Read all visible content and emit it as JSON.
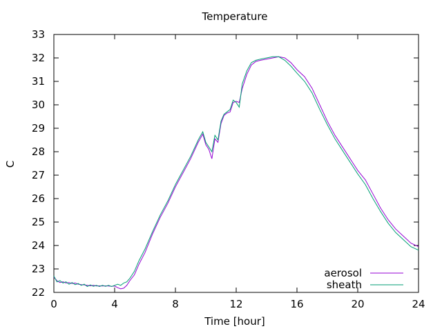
{
  "chart_data": {
    "type": "line",
    "title": "Temperature",
    "xlabel": "Time [hour]",
    "ylabel": "C",
    "xlim": [
      0,
      24
    ],
    "ylim": [
      22,
      33
    ],
    "xticks": [
      "0",
      "4",
      "8",
      "12",
      "16",
      "20",
      "24"
    ],
    "yticks": [
      "22",
      "23",
      "24",
      "25",
      "26",
      "27",
      "28",
      "29",
      "30",
      "31",
      "32",
      "33"
    ],
    "grid": false,
    "legend_position": "bottom-right",
    "series": [
      {
        "name": "aerosol",
        "color": "#9400d3",
        "x": [
          0.0,
          0.2,
          0.4,
          0.6,
          0.8,
          1.0,
          1.2,
          1.4,
          1.6,
          1.8,
          2.0,
          2.2,
          2.4,
          2.6,
          2.8,
          3.0,
          3.2,
          3.4,
          3.6,
          3.8,
          4.0,
          4.2,
          4.4,
          4.6,
          4.8,
          5.0,
          5.3,
          5.6,
          6.0,
          6.5,
          7.0,
          7.5,
          8.0,
          8.5,
          9.0,
          9.5,
          9.8,
          10.0,
          10.2,
          10.4,
          10.6,
          10.8,
          11.0,
          11.2,
          11.4,
          11.6,
          11.8,
          12.0,
          12.2,
          12.4,
          12.7,
          13.0,
          13.3,
          13.6,
          14.0,
          14.4,
          14.8,
          15.2,
          15.6,
          16.0,
          16.5,
          17.0,
          17.5,
          18.0,
          18.5,
          19.0,
          19.5,
          20.0,
          20.5,
          21.0,
          21.5,
          22.0,
          22.5,
          23.0,
          23.5,
          24.0
        ],
        "y": [
          22.65,
          22.5,
          22.42,
          22.45,
          22.4,
          22.42,
          22.38,
          22.4,
          22.35,
          22.33,
          22.32,
          22.3,
          22.28,
          22.3,
          22.27,
          22.28,
          22.27,
          22.28,
          22.27,
          22.26,
          22.27,
          22.2,
          22.15,
          22.18,
          22.3,
          22.5,
          22.75,
          23.2,
          23.7,
          24.5,
          25.2,
          25.8,
          26.5,
          27.1,
          27.7,
          28.4,
          28.75,
          28.3,
          28.1,
          27.7,
          28.55,
          28.4,
          29.2,
          29.55,
          29.65,
          29.7,
          30.1,
          30.15,
          30.1,
          30.7,
          31.3,
          31.7,
          31.85,
          31.9,
          31.95,
          32.0,
          32.05,
          32.0,
          31.8,
          31.5,
          31.2,
          30.7,
          30.0,
          29.3,
          28.7,
          28.2,
          27.7,
          27.2,
          26.8,
          26.2,
          25.6,
          25.1,
          24.7,
          24.4,
          24.1,
          23.95
        ]
      },
      {
        "name": "sheath",
        "color": "#009e73",
        "x": [
          0.0,
          0.2,
          0.4,
          0.6,
          0.8,
          1.0,
          1.2,
          1.4,
          1.6,
          1.8,
          2.0,
          2.2,
          2.4,
          2.6,
          2.8,
          3.0,
          3.2,
          3.4,
          3.6,
          3.8,
          4.0,
          4.2,
          4.4,
          4.6,
          4.8,
          5.0,
          5.3,
          5.6,
          6.0,
          6.5,
          7.0,
          7.5,
          8.0,
          8.5,
          9.0,
          9.5,
          9.8,
          10.0,
          10.2,
          10.4,
          10.6,
          10.8,
          11.0,
          11.2,
          11.4,
          11.6,
          11.8,
          12.0,
          12.2,
          12.4,
          12.7,
          13.0,
          13.3,
          13.6,
          14.0,
          14.4,
          14.8,
          15.2,
          15.6,
          16.0,
          16.5,
          17.0,
          17.5,
          18.0,
          18.5,
          19.0,
          19.5,
          20.0,
          20.5,
          21.0,
          21.5,
          22.0,
          22.5,
          23.0,
          23.5,
          24.0
        ],
        "y": [
          22.7,
          22.45,
          22.5,
          22.4,
          22.45,
          22.35,
          22.42,
          22.33,
          22.38,
          22.3,
          22.35,
          22.25,
          22.32,
          22.26,
          22.3,
          22.25,
          22.3,
          22.26,
          22.3,
          22.25,
          22.3,
          22.35,
          22.3,
          22.4,
          22.45,
          22.6,
          22.9,
          23.35,
          23.85,
          24.6,
          25.3,
          25.9,
          26.6,
          27.2,
          27.8,
          28.5,
          28.85,
          28.4,
          28.2,
          28.0,
          28.7,
          28.5,
          29.3,
          29.6,
          29.7,
          29.8,
          30.2,
          30.1,
          29.9,
          30.9,
          31.45,
          31.8,
          31.9,
          31.95,
          32.0,
          32.05,
          32.05,
          31.9,
          31.65,
          31.35,
          31.0,
          30.5,
          29.8,
          29.15,
          28.55,
          28.05,
          27.55,
          27.05,
          26.6,
          26.0,
          25.45,
          24.95,
          24.55,
          24.25,
          23.95,
          23.8
        ]
      }
    ]
  }
}
